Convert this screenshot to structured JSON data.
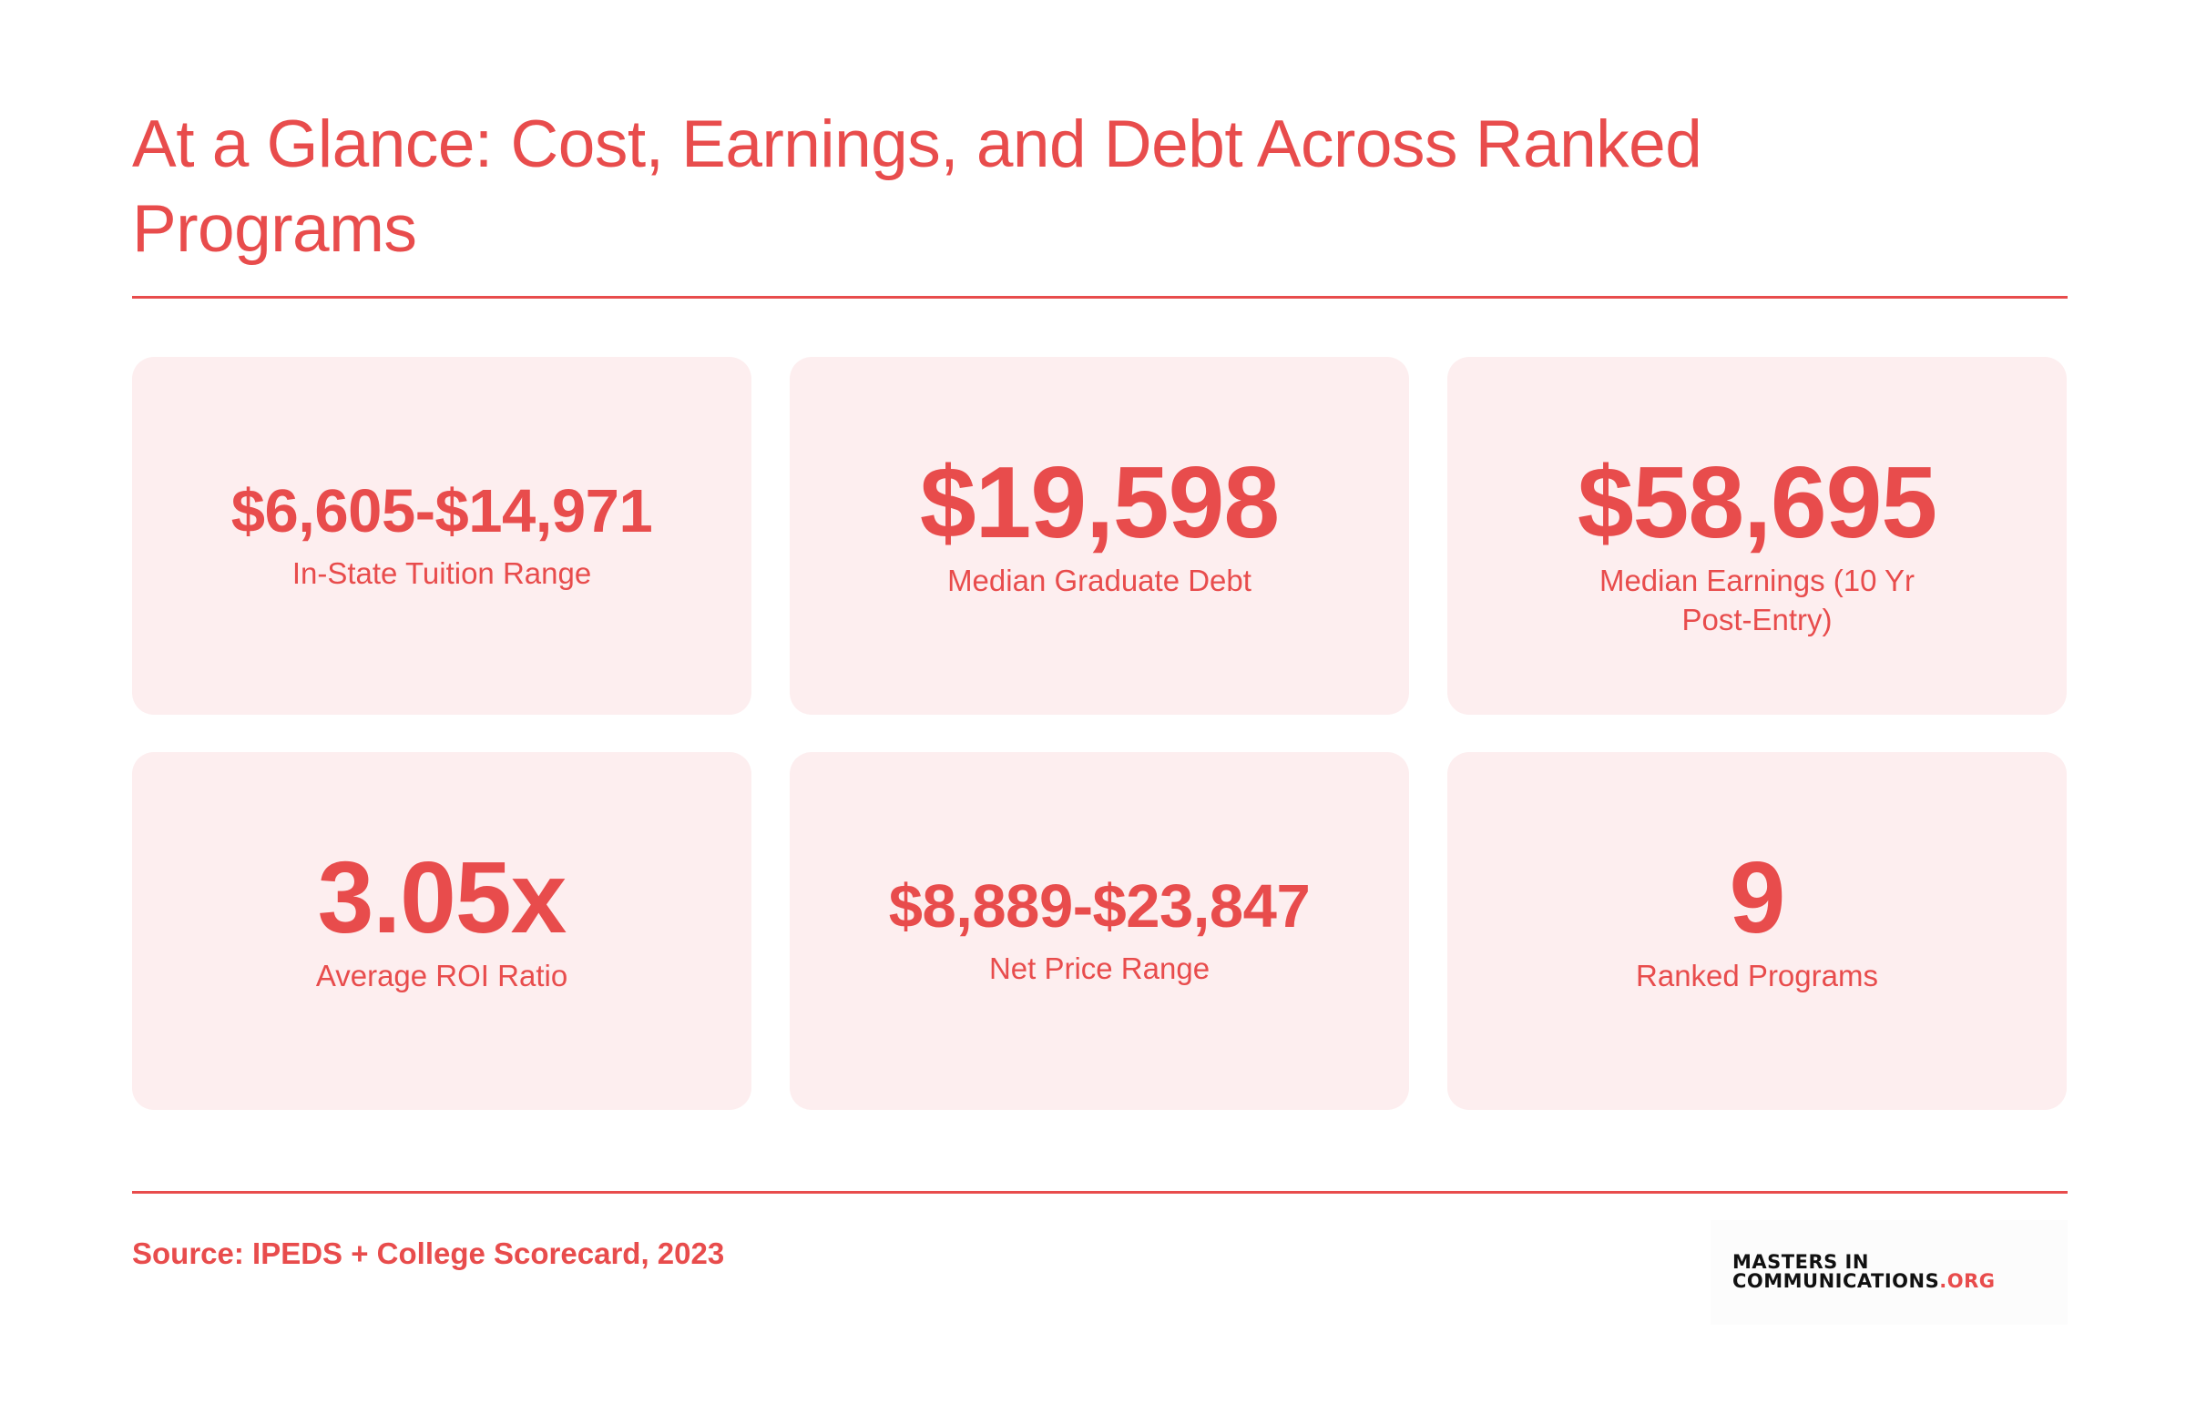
{
  "header": {
    "title": "At a Glance: Cost, Earnings, and Debt Across Ranked Programs"
  },
  "stats": [
    {
      "value": "$6,605-$14,971",
      "label": "In-State Tuition Range"
    },
    {
      "value": "$19,598",
      "label": "Median Graduate Debt"
    },
    {
      "value": "$58,695",
      "label": "Median Earnings (10 Yr Post-Entry)"
    },
    {
      "value": "3.05x",
      "label": "Average ROI Ratio"
    },
    {
      "value": "$8,889-$23,847",
      "label": "Net Price Range"
    },
    {
      "value": "9",
      "label": "Ranked Programs"
    }
  ],
  "footer": {
    "source": "Source: IPEDS + College Scorecard, 2023",
    "logo": {
      "line1": "MASTERS IN",
      "line2": "COMMUNICATIONS",
      "tld": ".ORG"
    }
  },
  "colors": {
    "accent": "#e84c4c",
    "card_background": "#fdeeef",
    "logo_text": "#111111"
  }
}
